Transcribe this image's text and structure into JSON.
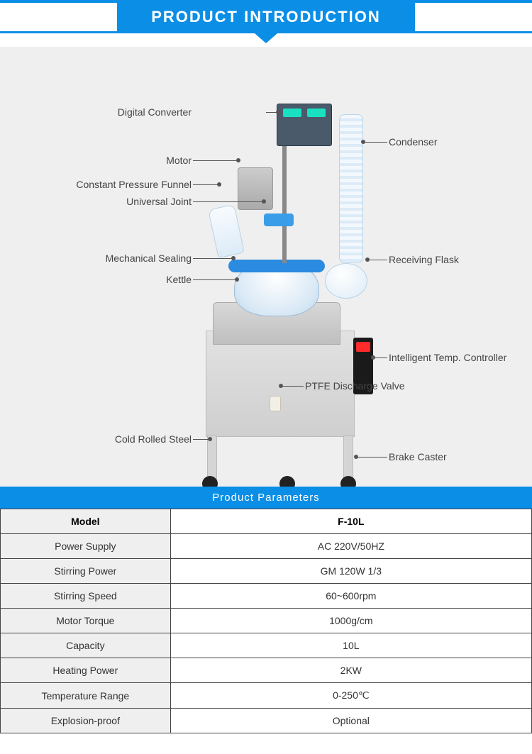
{
  "header": {
    "title": "PRODUCT  INTRODUCTION"
  },
  "diagram": {
    "labels": {
      "digital_converter": "Digital Converter",
      "motor": "Motor",
      "constant_pressure_funnel": "Constant Pressure Funnel",
      "universal_joint": "Universal Joint",
      "mechanical_sealing": "Mechanical Sealing",
      "kettle": "Kettle",
      "cold_rolled_steel": "Cold Rolled Steel",
      "condenser": "Condenser",
      "receiving_flask": "Receiving Flask",
      "intelligent_temp_controller": "Intelligent Temp. Controller",
      "ptfe_discharge_valve": "PTFE Discharge Valve",
      "brake_caster": "Brake Caster"
    }
  },
  "params": {
    "header": "Product  Parameters",
    "rows": [
      {
        "name": "Model",
        "value": "F-10L"
      },
      {
        "name": "Power Supply",
        "value": "AC 220V/50HZ"
      },
      {
        "name": "Stirring Power",
        "value": "GM 120W 1/3"
      },
      {
        "name": "Stirring Speed",
        "value": "60~600rpm"
      },
      {
        "name": "Motor Torque",
        "value": "1000g/cm"
      },
      {
        "name": "Capacity",
        "value": "10L"
      },
      {
        "name": "Heating Power",
        "value": "2KW"
      },
      {
        "name": "Temperature  Range",
        "value": "0-250℃"
      },
      {
        "name": "Explosion-proof",
        "value": "Optional"
      }
    ]
  },
  "colors": {
    "brand_blue": "#0b8ee6",
    "diagram_bg": "#efefef",
    "table_label_bg": "#efefef",
    "border": "#444444"
  }
}
